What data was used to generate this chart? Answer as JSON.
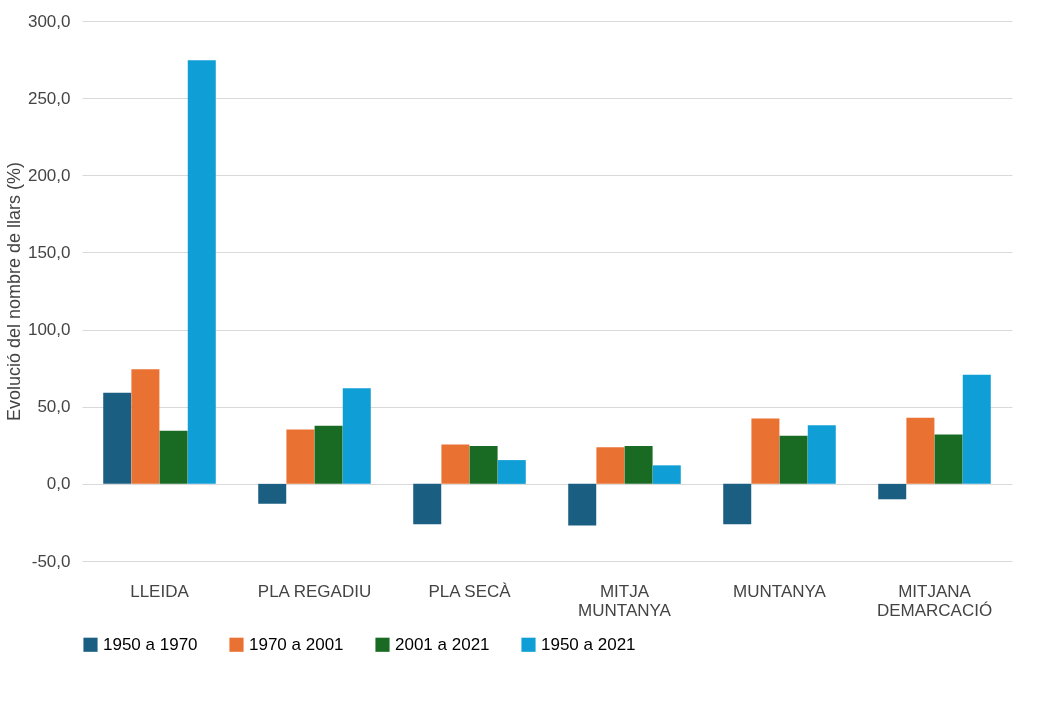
{
  "chart_data": {
    "type": "bar",
    "ylabel": "Evolució del nombre de llars (%)",
    "categories": [
      "LLEIDA",
      "PLA REGADIU",
      "PLA SECÀ",
      "MITJA\nMUNTANYA",
      "MUNTANYA",
      "MITJANA\nDEMARCACIÓ"
    ],
    "series": [
      {
        "name": "1950 a 1970",
        "color": "#1a5e82",
        "values": [
          59.1,
          -12.9,
          -26.1,
          -27.0,
          -26.1,
          -10.0
        ]
      },
      {
        "name": "1970 a 2001",
        "color": "#e97132",
        "values": [
          74.3,
          35.3,
          25.5,
          23.7,
          42.3,
          42.9
        ]
      },
      {
        "name": "2001 a 2021",
        "color": "#196b24",
        "values": [
          34.4,
          37.6,
          24.5,
          24.5,
          31.1,
          32.0
        ]
      },
      {
        "name": "1950 a 2021",
        "color": "#0f9ed5",
        "values": [
          274.5,
          62.0,
          15.4,
          12.0,
          38.0,
          70.7
        ]
      }
    ],
    "ylim": [
      -50,
      300
    ],
    "yticks": [
      {
        "value": -50,
        "label": "-50,0"
      },
      {
        "value": 0,
        "label": "0,0"
      },
      {
        "value": 50,
        "label": "50,0"
      },
      {
        "value": 100,
        "label": "100,0"
      },
      {
        "value": 150,
        "label": "150,0"
      },
      {
        "value": 200,
        "label": "200,0"
      },
      {
        "value": 250,
        "label": "250,0"
      },
      {
        "value": 300,
        "label": "300,0"
      }
    ],
    "grid": "y",
    "legend": "bottom"
  }
}
